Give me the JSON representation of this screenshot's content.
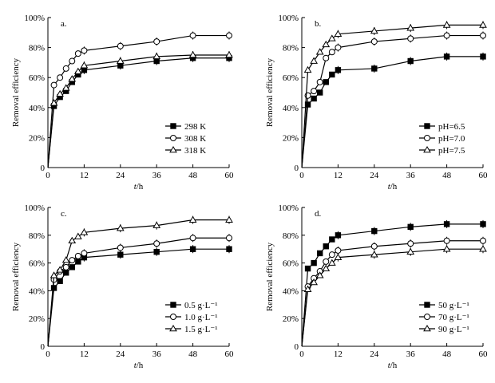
{
  "chart_data": [
    {
      "type": "line",
      "panel_label": "a.",
      "xlabel_italic": "t",
      "xlabel_unit": "/h",
      "ylabel": "Removal efficiency",
      "x_ticks": [
        "0",
        "12",
        "24",
        "36",
        "48",
        "60"
      ],
      "y_ticks": [
        "0",
        "20%",
        "40%",
        "60%",
        "80%",
        "100%"
      ],
      "xlim": [
        0,
        60
      ],
      "ylim": [
        0,
        100
      ],
      "legend_position": "bottom-right",
      "series": [
        {
          "name": "298 K",
          "marker": "square-filled",
          "x": [
            0,
            2,
            4,
            6,
            8,
            10,
            12,
            24,
            36,
            48,
            60
          ],
          "values": [
            0,
            41,
            47,
            51,
            57,
            62,
            65,
            68,
            71,
            73,
            73
          ]
        },
        {
          "name": "308 K",
          "marker": "circle-open",
          "x": [
            0,
            2,
            4,
            6,
            8,
            10,
            12,
            24,
            36,
            48,
            60
          ],
          "values": [
            0,
            55,
            60,
            66,
            71,
            76,
            78,
            81,
            84,
            88,
            88
          ]
        },
        {
          "name": "318 K",
          "marker": "triangle-open",
          "x": [
            0,
            2,
            4,
            6,
            8,
            10,
            12,
            24,
            36,
            48,
            60
          ],
          "values": [
            0,
            43,
            49,
            53,
            59,
            64,
            68,
            71,
            74,
            75,
            75
          ]
        }
      ]
    },
    {
      "type": "line",
      "panel_label": "b.",
      "xlabel_italic": "t",
      "xlabel_unit": "/h",
      "ylabel": "Removal efficiency",
      "x_ticks": [
        "0",
        "12",
        "24",
        "36",
        "48",
        "60"
      ],
      "y_ticks": [
        "0",
        "20%",
        "40%",
        "60%",
        "80%",
        "100%"
      ],
      "xlim": [
        0,
        60
      ],
      "ylim": [
        0,
        100
      ],
      "legend_position": "bottom-right",
      "series": [
        {
          "name": "pH=6.5",
          "marker": "square-filled",
          "x": [
            0,
            2,
            4,
            6,
            8,
            10,
            12,
            24,
            36,
            48,
            60
          ],
          "values": [
            0,
            42,
            46,
            50,
            57,
            62,
            65,
            66,
            71,
            74,
            74
          ]
        },
        {
          "name": "pH=7.0",
          "marker": "circle-open",
          "x": [
            0,
            2,
            4,
            6,
            8,
            10,
            12,
            24,
            36,
            48,
            60
          ],
          "values": [
            0,
            48,
            51,
            57,
            73,
            77,
            80,
            84,
            86,
            88,
            88
          ]
        },
        {
          "name": "pH=7.5",
          "marker": "triangle-open",
          "x": [
            0,
            2,
            4,
            6,
            8,
            10,
            12,
            24,
            36,
            48,
            60
          ],
          "values": [
            0,
            65,
            71,
            77,
            82,
            86,
            89,
            91,
            93,
            95,
            95
          ]
        }
      ]
    },
    {
      "type": "line",
      "panel_label": "c.",
      "xlabel_italic": "t",
      "xlabel_unit": "/h",
      "ylabel": "Removal efficiency",
      "x_ticks": [
        "0",
        "12",
        "24",
        "36",
        "48",
        "60"
      ],
      "y_ticks": [
        "0",
        "20%",
        "40%",
        "60%",
        "80%",
        "100%"
      ],
      "xlim": [
        0,
        60
      ],
      "ylim": [
        0,
        100
      ],
      "legend_position": "bottom-right",
      "series": [
        {
          "name": "0.5 g·L⁻¹",
          "marker": "square-filled",
          "x": [
            0,
            2,
            4,
            6,
            8,
            10,
            12,
            24,
            36,
            48,
            60
          ],
          "values": [
            0,
            42,
            47,
            53,
            57,
            61,
            64,
            66,
            68,
            70,
            70
          ]
        },
        {
          "name": "1.0 g·L⁻¹",
          "marker": "circle-open",
          "x": [
            0,
            2,
            4,
            6,
            8,
            10,
            12,
            24,
            36,
            48,
            60
          ],
          "values": [
            0,
            48,
            54,
            57,
            62,
            65,
            67,
            71,
            74,
            78,
            78
          ]
        },
        {
          "name": "1.5 g·L⁻¹",
          "marker": "triangle-open",
          "x": [
            0,
            2,
            4,
            6,
            8,
            10,
            12,
            24,
            36,
            48,
            60
          ],
          "values": [
            0,
            51,
            55,
            62,
            76,
            79,
            82,
            85,
            87,
            91,
            91
          ]
        }
      ]
    },
    {
      "type": "line",
      "panel_label": "d.",
      "xlabel_italic": "t",
      "xlabel_unit": "/h",
      "ylabel": "Removal efficiency",
      "x_ticks": [
        "0",
        "12",
        "24",
        "36",
        "48",
        "60"
      ],
      "y_ticks": [
        "0",
        "20%",
        "40%",
        "60%",
        "80%",
        "100%"
      ],
      "xlim": [
        0,
        60
      ],
      "ylim": [
        0,
        100
      ],
      "legend_position": "bottom-right",
      "series": [
        {
          "name": "50 g·L⁻¹",
          "marker": "square-filled",
          "x": [
            0,
            2,
            4,
            6,
            8,
            10,
            12,
            24,
            36,
            48,
            60
          ],
          "values": [
            0,
            56,
            60,
            67,
            72,
            77,
            80,
            83,
            86,
            88,
            88
          ]
        },
        {
          "name": "70 g·L⁻¹",
          "marker": "circle-open",
          "x": [
            0,
            2,
            4,
            6,
            8,
            10,
            12,
            24,
            36,
            48,
            60
          ],
          "values": [
            0,
            43,
            49,
            54,
            61,
            66,
            69,
            72,
            74,
            76,
            76
          ]
        },
        {
          "name": "90 g·L⁻¹",
          "marker": "triangle-open",
          "x": [
            0,
            2,
            4,
            6,
            8,
            10,
            12,
            24,
            36,
            48,
            60
          ],
          "values": [
            0,
            41,
            46,
            51,
            56,
            60,
            64,
            66,
            68,
            70,
            70
          ]
        }
      ]
    }
  ]
}
